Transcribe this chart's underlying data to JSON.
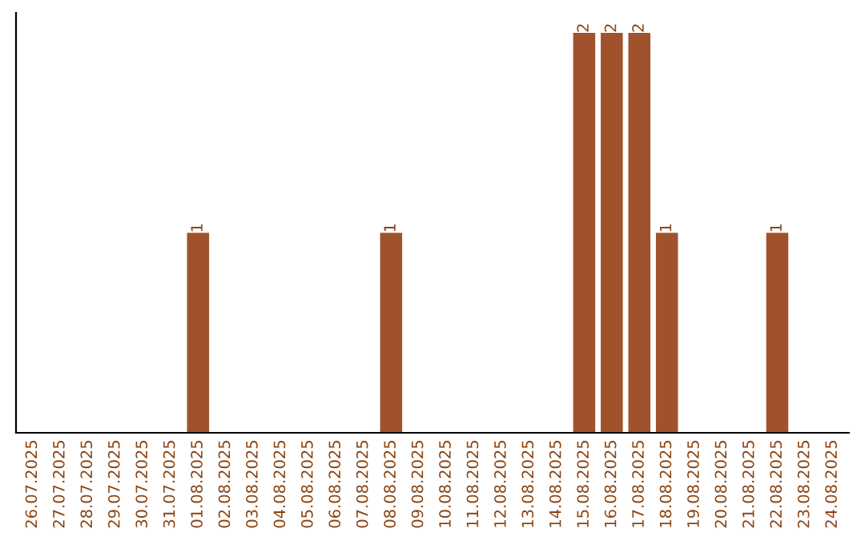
{
  "chart_data": {
    "type": "bar",
    "categories": [
      "26.07.2025",
      "27.07.2025",
      "28.07.2025",
      "29.07.2025",
      "30.07.2025",
      "31.07.2025",
      "01.08.2025",
      "02.08.2025",
      "03.08.2025",
      "04.08.2025",
      "05.08.2025",
      "06.08.2025",
      "07.08.2025",
      "08.08.2025",
      "09.08.2025",
      "10.08.2025",
      "11.08.2025",
      "12.08.2025",
      "13.08.2025",
      "14.08.2025",
      "15.08.2025",
      "16.08.2025",
      "17.08.2025",
      "18.08.2025",
      "19.08.2025",
      "20.08.2025",
      "21.08.2025",
      "22.08.2025",
      "23.08.2025",
      "24.08.2025"
    ],
    "values": [
      0,
      0,
      0,
      0,
      0,
      0,
      1,
      0,
      0,
      0,
      0,
      0,
      0,
      1,
      0,
      0,
      0,
      0,
      0,
      0,
      2,
      2,
      2,
      1,
      0,
      0,
      0,
      1,
      0,
      0
    ],
    "value_labels": [
      null,
      null,
      null,
      null,
      null,
      null,
      "1",
      null,
      null,
      null,
      null,
      null,
      null,
      "1",
      null,
      null,
      null,
      null,
      null,
      null,
      "2",
      "2",
      "2",
      "1",
      null,
      null,
      null,
      "1",
      null,
      null
    ],
    "color": "#a0522d",
    "tick_labels": "x",
    "grid": false
  }
}
